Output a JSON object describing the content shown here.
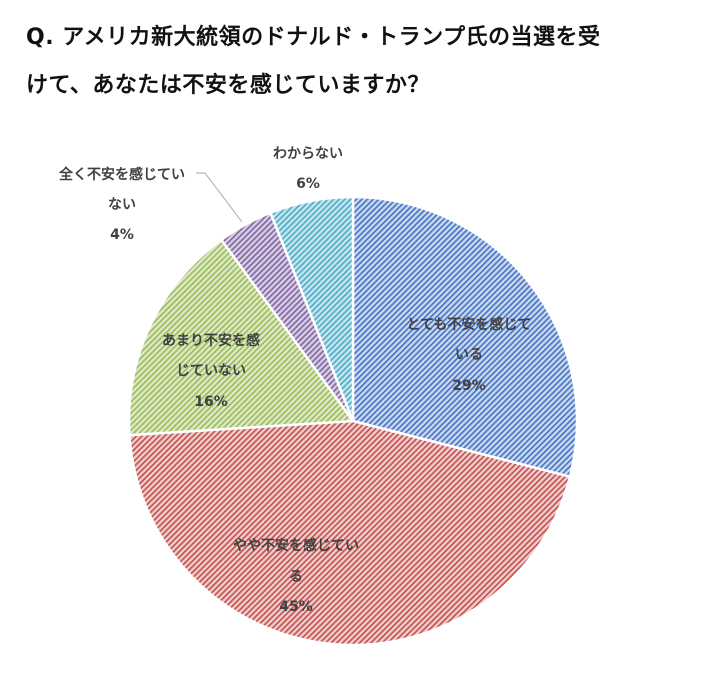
{
  "title": {
    "line1": "Q. アメリカ新大統領のドナルド・トランプ氏の当選を受",
    "line2": "けて、あなたは不安を感じていますか？"
  },
  "chart_data": {
    "type": "pie",
    "title": "Q. アメリカ新大統領のドナルド・トランプ氏の当選を受けて、あなたは不安を感じていますか？",
    "start_angle": "12 o'clock, clockwise",
    "categories": [
      "とても不安を感じている",
      "やや不安を感じている",
      "あまり不安を感じていない",
      "全く不安を感じていない",
      "わからない"
    ],
    "values": [
      29,
      45,
      16,
      4,
      6
    ],
    "unit": "%",
    "fill_style": "diagonal hatch",
    "colors": [
      "#4472c4",
      "#c0504d",
      "#9bbb59",
      "#8064a2",
      "#4bacc6"
    ],
    "light_colors": [
      "#c9d7ee",
      "#f0cccb",
      "#dde9c6",
      "#d6cde3",
      "#c5e5ee"
    ],
    "legend": "none (data labels on slices)",
    "labels": [
      {
        "lines": [
          "とても不安を感じて",
          "いる"
        ],
        "pct": "29%"
      },
      {
        "lines": [
          "やや不安を感じてい",
          "る"
        ],
        "pct": "45%"
      },
      {
        "lines": [
          "あまり不安を感",
          "じていない"
        ],
        "pct": "16%"
      },
      {
        "lines": [
          "全く不安を感じてい",
          "ない"
        ],
        "pct": "4%"
      },
      {
        "lines": [
          "わからない"
        ],
        "pct": "6%"
      }
    ]
  }
}
